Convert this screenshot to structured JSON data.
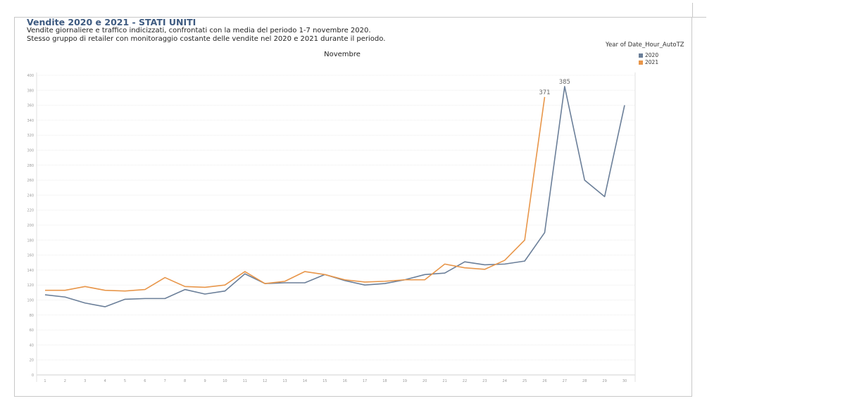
{
  "header": {
    "title": "Vendite 2020 e 2021 - STATI UNITI",
    "subtitle_1": "Vendite giornaliere e traffico indicizzati, confrontati con la media del periodo 1-7 novembre 2020.",
    "subtitle_2": "Stesso gruppo di retailer con monitoraggio costante delle vendite nel 2020 e 2021 durante il periodo."
  },
  "legend": {
    "title": "Year of Date_Hour_AutoTZ",
    "items": [
      {
        "label": "2020",
        "color": "#6b7f99"
      },
      {
        "label": "2021",
        "color": "#e8964a"
      }
    ]
  },
  "chart_data": {
    "type": "line",
    "title": "Novembre",
    "x": [
      "1",
      "2",
      "3",
      "4",
      "5",
      "6",
      "7",
      "8",
      "9",
      "10",
      "11",
      "12",
      "13",
      "14",
      "15",
      "16",
      "17",
      "18",
      "19",
      "20",
      "21",
      "22",
      "23",
      "24",
      "25",
      "26",
      "27",
      "28",
      "29",
      "30"
    ],
    "ylim": [
      0,
      400
    ],
    "yticks": [
      0,
      20,
      40,
      60,
      80,
      100,
      120,
      140,
      160,
      180,
      200,
      220,
      240,
      260,
      280,
      300,
      320,
      340,
      360,
      380,
      400
    ],
    "grid": true,
    "legend_position": "right",
    "series": [
      {
        "name": "2020",
        "color": "#6b7f99",
        "values": [
          107,
          104,
          96,
          91,
          101,
          102,
          102,
          114,
          108,
          112,
          135,
          122,
          123,
          123,
          134,
          126,
          120,
          122,
          127,
          134,
          136,
          151,
          147,
          148,
          152,
          190,
          385,
          260,
          238,
          360
        ]
      },
      {
        "name": "2021",
        "color": "#e8964a",
        "values": [
          113,
          113,
          118,
          113,
          112,
          114,
          130,
          118,
          117,
          120,
          138,
          122,
          125,
          138,
          134,
          127,
          124,
          125,
          127,
          127,
          148,
          143,
          141,
          153,
          180,
          371,
          null,
          null,
          null,
          null
        ]
      }
    ],
    "annotations": [
      {
        "series": "2021",
        "x": "26",
        "label": "371"
      },
      {
        "series": "2020",
        "x": "27",
        "label": "385"
      }
    ]
  }
}
